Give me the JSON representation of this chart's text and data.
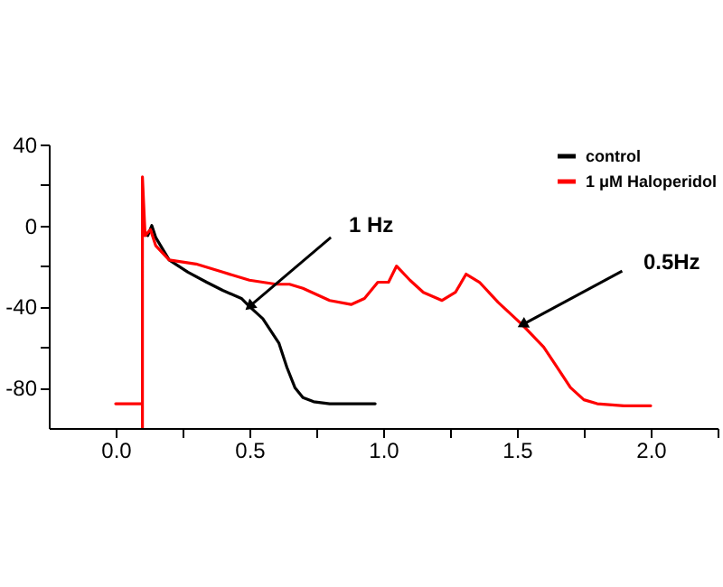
{
  "chart_data": {
    "type": "line",
    "series": [
      {
        "name": "control",
        "color": "#000000",
        "x": [
          0.12,
          0.135,
          0.15,
          0.2,
          0.27,
          0.34,
          0.4,
          0.47,
          0.5,
          0.55,
          0.61,
          0.64,
          0.67,
          0.7,
          0.74,
          0.8,
          0.9,
          0.97
        ],
        "values": [
          -5,
          0,
          -6,
          -17,
          -23,
          -28,
          -32,
          -36,
          -40,
          -46,
          -58,
          -70,
          -80,
          -85,
          -87,
          -88,
          -88,
          -88
        ]
      },
      {
        "name": "1 μM Haloperidol",
        "color": "#ff0000",
        "x": [
          0,
          0.1,
          0.1,
          0.1,
          0.11,
          0.13,
          0.15,
          0.2,
          0.3,
          0.4,
          0.5,
          0.6,
          0.65,
          0.7,
          0.8,
          0.88,
          0.93,
          0.98,
          1.02,
          1.05,
          1.1,
          1.15,
          1.22,
          1.27,
          1.31,
          1.36,
          1.43,
          1.52,
          1.6,
          1.65,
          1.7,
          1.75,
          1.8,
          1.9,
          2.0
        ],
        "values": [
          -88,
          -88,
          -100,
          24,
          -5,
          -2,
          -10,
          -17,
          -19,
          -23,
          -27,
          -29,
          -29,
          -31,
          -37,
          -39,
          -36,
          -28,
          -28,
          -20,
          -27,
          -33,
          -37,
          -33,
          -24,
          -28,
          -38,
          -49,
          -60,
          -70,
          -80,
          -86,
          -88,
          -89,
          -89
        ]
      }
    ],
    "xlim": [
      -0.25,
      2.25
    ],
    "xticks": [
      {
        "value": 0,
        "label": "0.0"
      },
      {
        "value": 0.25,
        "label": null
      },
      0.5,
      {
        "value": 0.75,
        "label": null
      },
      {
        "value": 1,
        "label": "1.0"
      },
      {
        "value": 1.25,
        "label": null
      },
      1.5,
      {
        "value": 1.75,
        "label": null
      },
      {
        "value": 2,
        "label": "2.0"
      },
      {
        "value": 2.25,
        "label": null
      }
    ],
    "ylim": [
      -100,
      40
    ],
    "yticks": [
      -80,
      {
        "value": -60,
        "label": null
      },
      -40,
      {
        "value": -20,
        "label": null
      },
      0,
      {
        "value": 20,
        "label": null
      },
      40
    ],
    "annotations": [
      {
        "text": "1 Hz",
        "x": 0.5,
        "y": -40
      },
      {
        "text": "0.5Hz",
        "x": 1.52,
        "y": -49
      }
    ],
    "legend": "top right",
    "grid": false,
    "marker": "none",
    "line_style": "solid"
  }
}
